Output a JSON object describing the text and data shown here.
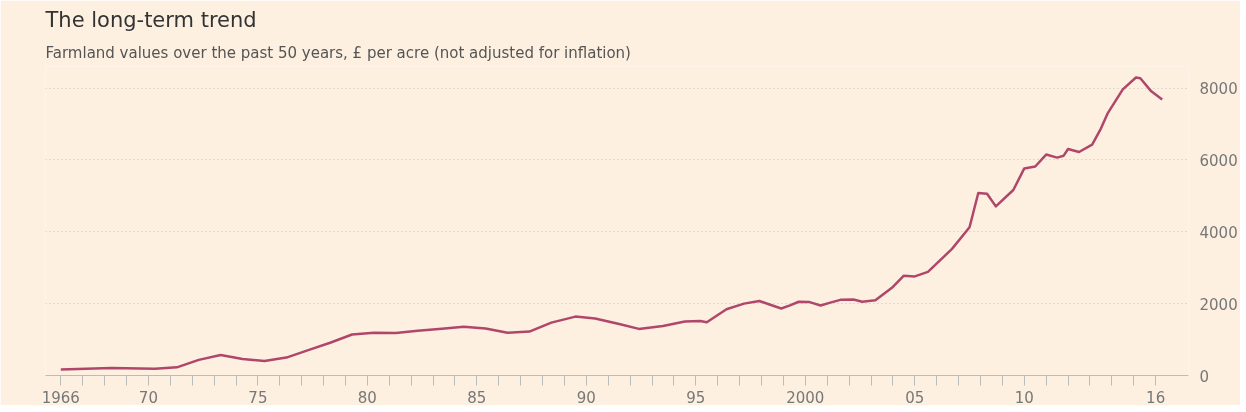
{
  "chart_data": {
    "type": "line",
    "title": "The long-term trend",
    "subtitle": "Farmland values over the past 50 years,  £ per acre (not adjusted for inflation)",
    "x": [
      1966.0,
      1968.3,
      1970.3,
      1971.3,
      1972.3,
      1973.3,
      1974.3,
      1975.3,
      1976.3,
      1977.3,
      1978.3,
      1979.3,
      1980.3,
      1981.3,
      1982.3,
      1983.4,
      1984.4,
      1985.4,
      1986.4,
      1987.4,
      1988.4,
      1989.5,
      1990.4,
      1991.5,
      1992.4,
      1993.5,
      1994.5,
      1995.2,
      1995.5,
      1996.4,
      1997.2,
      1997.9,
      1998.4,
      1998.9,
      1999.3,
      1999.7,
      2000.2,
      2000.7,
      2001.1,
      2001.6,
      2002.2,
      2002.6,
      2003.2,
      2004.0,
      2004.5,
      2005.0,
      2005.6,
      2006.7,
      2007.5,
      2007.9,
      2008.3,
      2008.7,
      2009.5,
      2010.0,
      2010.5,
      2011.0,
      2011.5,
      2011.8,
      2012.0,
      2012.5,
      2013.1,
      2013.5,
      2013.8,
      2014.5,
      2015.1,
      2015.3,
      2015.8,
      2016.3
    ],
    "series": [
      {
        "color": "#b0476a",
        "values": [
          165,
          208,
          187,
          227,
          435,
          570,
          457,
          404,
          498,
          705,
          911,
          1141,
          1191,
          1181,
          1244,
          1300,
          1359,
          1306,
          1191,
          1222,
          1471,
          1639,
          1586,
          1431,
          1297,
          1378,
          1502,
          1515,
          1484,
          1844,
          2000,
          2074,
          1969,
          1866,
          1950,
          2053,
          2043,
          1950,
          2022,
          2105,
          2115,
          2053,
          2093,
          2466,
          2777,
          2758,
          2883,
          3524,
          4127,
          5079,
          5060,
          4706,
          5163,
          5763,
          5816,
          6149,
          6065,
          6118,
          6304,
          6220,
          6428,
          6873,
          7287,
          7962,
          8294,
          8273,
          7909,
          7682
        ]
      }
    ],
    "xlim": [
      1965.3,
      2017.5
    ],
    "ylim": [
      0,
      8600
    ],
    "xticks": [
      1966,
      {
        "value": 1967,
        "label": null
      },
      {
        "value": 1968,
        "label": null
      },
      {
        "value": 1969,
        "label": null
      },
      {
        "value": 1970,
        "label": "70"
      },
      {
        "value": 1971,
        "label": null
      },
      {
        "value": 1972,
        "label": null
      },
      {
        "value": 1973,
        "label": null
      },
      {
        "value": 1974,
        "label": null
      },
      {
        "value": 1975,
        "label": "75"
      },
      {
        "value": 1976,
        "label": null
      },
      {
        "value": 1977,
        "label": null
      },
      {
        "value": 1978,
        "label": null
      },
      {
        "value": 1979,
        "label": null
      },
      {
        "value": 1980,
        "label": "80"
      },
      {
        "value": 1981,
        "label": null
      },
      {
        "value": 1982,
        "label": null
      },
      {
        "value": 1983,
        "label": null
      },
      {
        "value": 1984,
        "label": null
      },
      {
        "value": 1985,
        "label": "85"
      },
      {
        "value": 1986,
        "label": null
      },
      {
        "value": 1987,
        "label": null
      },
      {
        "value": 1988,
        "label": null
      },
      {
        "value": 1989,
        "label": null
      },
      {
        "value": 1990,
        "label": "90"
      },
      {
        "value": 1991,
        "label": null
      },
      {
        "value": 1992,
        "label": null
      },
      {
        "value": 1993,
        "label": null
      },
      {
        "value": 1994,
        "label": null
      },
      {
        "value": 1995,
        "label": "95"
      },
      {
        "value": 1996,
        "label": null
      },
      {
        "value": 1997,
        "label": null
      },
      {
        "value": 1998,
        "label": null
      },
      {
        "value": 1999,
        "label": null
      },
      2000,
      {
        "value": 2001,
        "label": null
      },
      {
        "value": 2002,
        "label": null
      },
      {
        "value": 2003,
        "label": null
      },
      {
        "value": 2004,
        "label": null
      },
      {
        "value": 2005,
        "label": "05"
      },
      {
        "value": 2006,
        "label": null
      },
      {
        "value": 2007,
        "label": null
      },
      {
        "value": 2008,
        "label": null
      },
      {
        "value": 2009,
        "label": null
      },
      {
        "value": 2010,
        "label": "10"
      },
      {
        "value": 2011,
        "label": null
      },
      {
        "value": 2012,
        "label": null
      },
      {
        "value": 2013,
        "label": null
      },
      {
        "value": 2014,
        "label": null
      },
      {
        "value": 2015,
        "label": null
      },
      {
        "value": 2016,
        "label": "16"
      }
    ],
    "yticks": [
      0,
      2000,
      4000,
      6000,
      8000
    ],
    "grid": "y"
  }
}
